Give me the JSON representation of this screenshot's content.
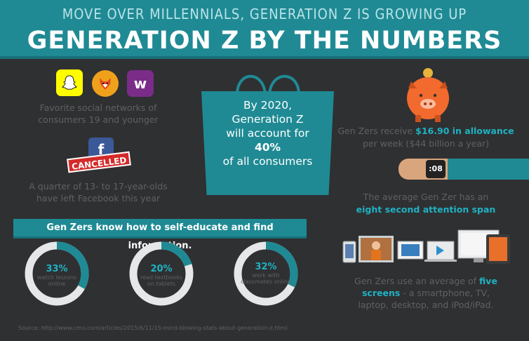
{
  "header": {
    "subtitle": "MOVE OVER MILLENNIALS, GENERATION Z IS GROWING UP",
    "title": "GENERATION Z BY THE NUMBERS"
  },
  "social": {
    "text_line1": "Favorite social networks of",
    "text_line2": "consumers 19 and younger",
    "apps": [
      "snapchat-icon",
      "foxy-icon",
      "wish-icon"
    ]
  },
  "facebook": {
    "stamp": "CANCELLED",
    "text_line1": "A quarter of 13- to 17-year-olds",
    "text_line2": "have left Facebook this year"
  },
  "bag": {
    "line1": "By 2020,",
    "line2": "Generation Z",
    "line3": "will account for",
    "highlight": "40%",
    "line4": "of all consumers"
  },
  "allowance": {
    "pre": "Gen Zers receive ",
    "highlight": "$16.90 in allowance",
    "line2": "per week ($44 billion a year)"
  },
  "attention": {
    "watch": ":08",
    "line1": "The average Gen Zer has an",
    "highlight": "eight second attention span"
  },
  "screens": {
    "pre": "Gen Zers use an average of ",
    "highlight1": "five",
    "highlight2": "screens",
    "line2_rest": " - a smartphone, TV,",
    "line3": "laptop, desktop, and iPod/iPad."
  },
  "education": {
    "banner": "Gen Zers know how to self-educate and find information.",
    "stats": [
      {
        "pct": "33%",
        "desc1": "watch lessons",
        "desc2": "online",
        "value": 33
      },
      {
        "pct": "20%",
        "desc1": "read textbooks",
        "desc2": "on tablets",
        "value": 20
      },
      {
        "pct": "32%",
        "desc1": "work with",
        "desc2": "classmates online",
        "value": 32
      }
    ]
  },
  "source": "Source: http://www.cmo.com/articles/2015/6/11/15-mind-blowing-stats-about-generation-z.html",
  "colors": {
    "accent": "#1f8a94",
    "highlight": "#1fb2c2",
    "background": "#2f3032",
    "piggy": "#f26a2e"
  }
}
